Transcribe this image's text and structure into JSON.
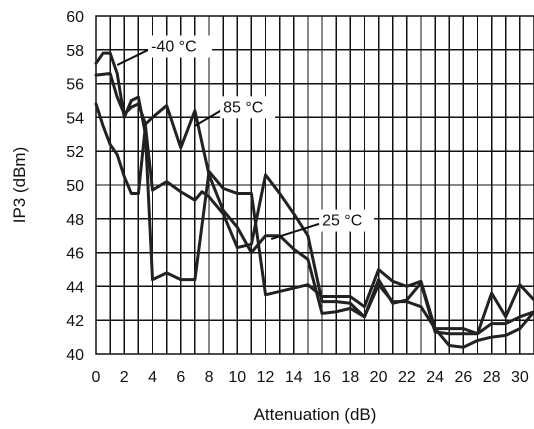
{
  "chart_data": {
    "type": "line",
    "xlabel": "Attenuation (dB)",
    "ylabel": "IP3 (dBm)",
    "xlim": [
      0,
      31
    ],
    "ylim": [
      40,
      60
    ],
    "x_ticks": [
      0,
      2,
      4,
      6,
      8,
      10,
      12,
      14,
      16,
      18,
      20,
      22,
      24,
      26,
      28,
      30
    ],
    "y_ticks": [
      40,
      42,
      44,
      46,
      48,
      50,
      52,
      54,
      56,
      58,
      60
    ],
    "grid": true,
    "series": [
      {
        "name": "-40 °C",
        "x": [
          0,
          0.5,
          1,
          1.5,
          2,
          2.5,
          3,
          3.5,
          4,
          5,
          6,
          7,
          8,
          9,
          10,
          11,
          12,
          13,
          14,
          15,
          16,
          17,
          18,
          19,
          20,
          21,
          22,
          23,
          24,
          25,
          26,
          27,
          28,
          29,
          30,
          31
        ],
        "y": [
          57.2,
          57.8,
          57.8,
          56.6,
          54,
          55,
          55.2,
          53,
          44.4,
          44.8,
          44.4,
          44.4,
          50.8,
          49.8,
          49.5,
          49.5,
          43.5,
          43.7,
          43.9,
          44.1,
          43.4,
          43.4,
          43.4,
          42.8,
          45,
          44.3,
          44,
          44.3,
          41.5,
          41.5,
          41.5,
          41.2,
          43.6,
          42.2,
          44.1,
          43.2
        ]
      },
      {
        "name": "85 °C",
        "x": [
          0,
          0.5,
          1,
          1.5,
          2,
          2.5,
          3,
          3.5,
          4,
          5,
          6,
          7,
          7.5,
          8,
          9,
          10,
          11,
          12,
          13,
          14,
          15,
          16,
          17,
          18,
          19,
          20,
          21,
          22,
          23,
          24,
          25,
          26,
          27,
          28,
          29,
          30,
          31
        ],
        "y": [
          54.8,
          53.5,
          52.4,
          51.8,
          50.5,
          49.5,
          49.5,
          53.5,
          49.7,
          50.2,
          49.6,
          49.1,
          49.6,
          49.3,
          48.3,
          46.3,
          46.5,
          50.6,
          49.5,
          48.3,
          47,
          43.1,
          43.1,
          43,
          42.2,
          44.4,
          43,
          43.2,
          44.2,
          41.3,
          41.2,
          41.2,
          41.2,
          41.8,
          41.8,
          42.2,
          42.5
        ]
      },
      {
        "name": "25 °C",
        "x": [
          0,
          1,
          1.5,
          2,
          2.5,
          3,
          3.5,
          4,
          5,
          6,
          7,
          8,
          9,
          10,
          11,
          12,
          13,
          14,
          15,
          16,
          17,
          18,
          19,
          20,
          21,
          22,
          23,
          24,
          25,
          26,
          27,
          28,
          29,
          30,
          31
        ],
        "y": [
          56.5,
          56.6,
          55.2,
          54.2,
          54.6,
          54.8,
          53.6,
          54,
          54.7,
          52.2,
          54.4,
          50.6,
          48.5,
          47.5,
          46,
          47,
          47,
          46.2,
          45.6,
          42.4,
          42.5,
          42.7,
          42.2,
          44.1,
          43.1,
          43.1,
          42.8,
          41.5,
          40.5,
          40.4,
          40.8,
          41,
          41.1,
          41.5,
          42.5
        ]
      }
    ],
    "annotations": [
      {
        "text": "-40 °C",
        "x": 3.9,
        "y": 57.9,
        "target_x": 1.5,
        "target_y": 57.1
      },
      {
        "text": "85 °C",
        "x": 9,
        "y": 54.3,
        "target_x": 7,
        "target_y": 53.5
      },
      {
        "text": "25 °C",
        "x": 16,
        "y": 47.6,
        "target_x": 12.4,
        "target_y": 46.8
      }
    ]
  }
}
